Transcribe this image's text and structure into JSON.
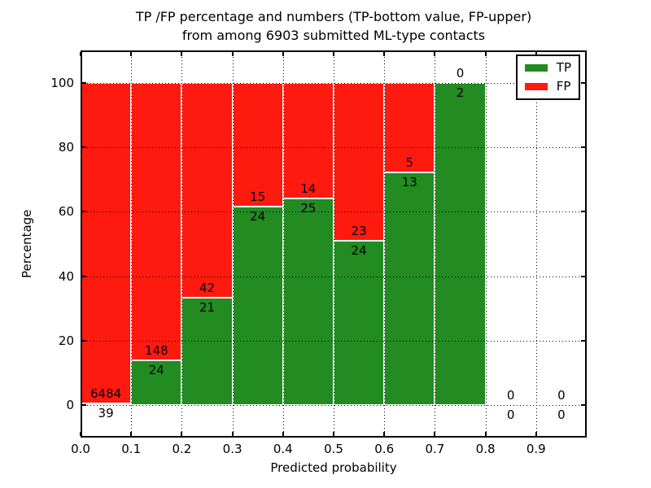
{
  "title": {
    "line1": "TP /FP percentage and numbers (TP-bottom value, FP-upper)",
    "line2": "from among 6903 submitted ML-type contacts"
  },
  "chart_data": {
    "type": "bar",
    "stacked": true,
    "normalized": "each non-empty bin stacks to 100%",
    "title": "TP /FP percentage and numbers (TP-bottom value, FP-upper) from among 6903 submitted ML-type contacts",
    "xlabel": "Predicted probability",
    "ylabel": "Percentage",
    "xlim": [
      0.0,
      1.0
    ],
    "ylim": [
      -10,
      110
    ],
    "grid": "dotted black, both axes, ticks inward on all four sides",
    "bin_width": 0.1,
    "bin_starts": [
      0.0,
      0.1,
      0.2,
      0.3,
      0.4,
      0.5,
      0.6,
      0.7,
      0.8,
      0.9
    ],
    "xtick_labels": [
      "0.0",
      "0.1",
      "0.2",
      "0.3",
      "0.4",
      "0.5",
      "0.6",
      "0.7",
      "0.8",
      "0.9"
    ],
    "ytick_values": [
      0,
      20,
      40,
      60,
      80,
      100
    ],
    "series": [
      {
        "name": "TP",
        "color": "#228b22",
        "counts": [
          39,
          24,
          21,
          24,
          25,
          24,
          13,
          2,
          0,
          0
        ]
      },
      {
        "name": "FP",
        "color": "#ff1a10",
        "counts": [
          6484,
          148,
          42,
          15,
          14,
          23,
          5,
          0,
          0,
          0
        ]
      }
    ],
    "tp_percent_by_bin": [
      0.6,
      14.0,
      33.3,
      61.5,
      64.1,
      51.1,
      72.2,
      100.0,
      0,
      0
    ],
    "total_contacts": 6903,
    "legend_position": "upper right"
  }
}
